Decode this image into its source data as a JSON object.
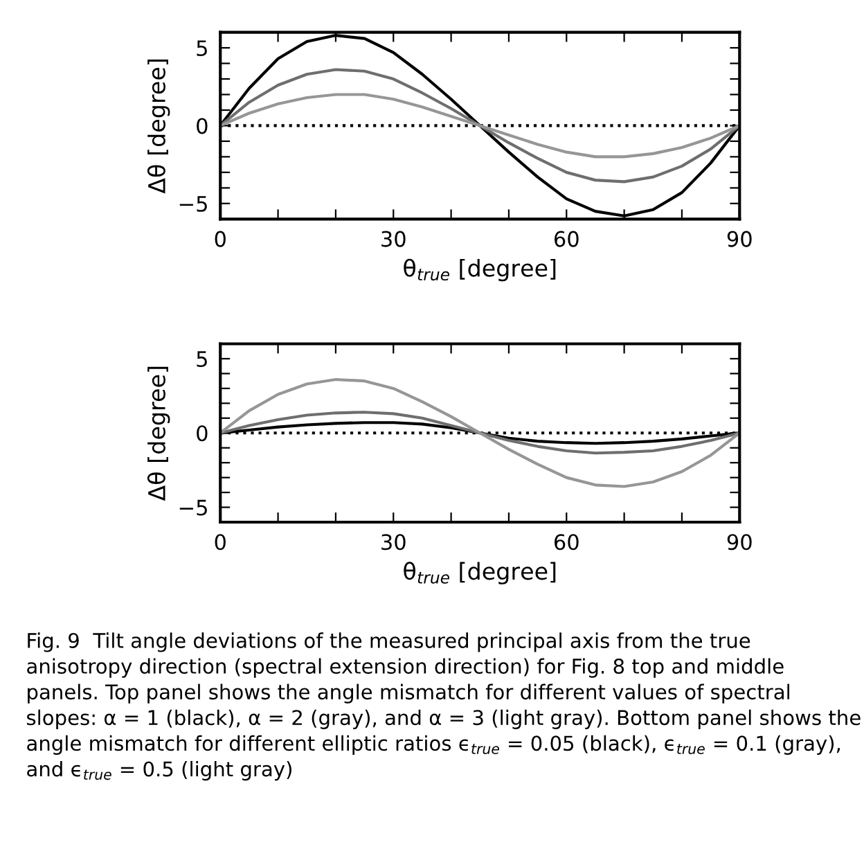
{
  "chart_data": [
    {
      "type": "line",
      "xlabel": "θ$_{true}$ [degree]",
      "ylabel": "Δθ [degree]",
      "x": [
        0,
        5,
        10,
        15,
        20,
        25,
        30,
        35,
        40,
        45,
        50,
        55,
        60,
        65,
        70,
        75,
        80,
        85,
        90
      ],
      "xlim": [
        0,
        90
      ],
      "ylim": [
        -6,
        6
      ],
      "xticks": [
        0,
        {
          "value": 10,
          "label": null
        },
        {
          "value": 20,
          "label": null
        },
        30,
        {
          "value": 40,
          "label": null
        },
        {
          "value": 50,
          "label": null
        },
        60,
        {
          "value": 70,
          "label": null
        },
        {
          "value": 80,
          "label": null
        },
        90
      ],
      "yticks": [
        {
          "value": -6,
          "label": null
        },
        -5,
        {
          "value": -4,
          "label": null
        },
        {
          "value": -3,
          "label": null
        },
        {
          "value": -2,
          "label": null
        },
        {
          "value": -1,
          "label": null
        },
        0,
        {
          "value": 1,
          "label": null
        },
        {
          "value": 2,
          "label": null
        },
        {
          "value": 3,
          "label": null
        },
        {
          "value": 4,
          "label": null
        },
        5,
        {
          "value": 6,
          "label": null
        }
      ],
      "grid": false,
      "legend": false,
      "ref_lines": [
        {
          "axis": "y",
          "value": 0,
          "color": "#000000",
          "line_style": "dotted"
        }
      ],
      "series": [
        {
          "color": "#000000",
          "values": [
            0,
            2.4,
            4.3,
            5.4,
            5.8,
            5.6,
            4.7,
            3.3,
            1.7,
            0,
            -1.7,
            -3.3,
            -4.7,
            -5.5,
            -5.8,
            -5.4,
            -4.3,
            -2.4,
            0
          ]
        },
        {
          "color": "#6e6e6e",
          "values": [
            0,
            1.5,
            2.6,
            3.3,
            3.6,
            3.5,
            3.0,
            2.1,
            1.1,
            0,
            -1.1,
            -2.1,
            -3.0,
            -3.5,
            -3.6,
            -3.3,
            -2.6,
            -1.5,
            0
          ]
        },
        {
          "color": "#969696",
          "values": [
            0,
            0.8,
            1.4,
            1.8,
            2.0,
            2.0,
            1.7,
            1.2,
            0.6,
            0,
            -0.6,
            -1.2,
            -1.7,
            -2.0,
            -2.0,
            -1.8,
            -1.4,
            -0.8,
            0
          ]
        }
      ]
    },
    {
      "type": "line",
      "xlabel": "θ$_{true}$ [degree]",
      "ylabel": "Δθ [degree]",
      "x": [
        0,
        5,
        10,
        15,
        20,
        25,
        30,
        35,
        40,
        45,
        50,
        55,
        60,
        65,
        70,
        75,
        80,
        85,
        90
      ],
      "xlim": [
        0,
        90
      ],
      "ylim": [
        -6,
        6
      ],
      "xticks": [
        0,
        {
          "value": 10,
          "label": null
        },
        {
          "value": 20,
          "label": null
        },
        30,
        {
          "value": 40,
          "label": null
        },
        {
          "value": 50,
          "label": null
        },
        60,
        {
          "value": 70,
          "label": null
        },
        {
          "value": 80,
          "label": null
        },
        90
      ],
      "yticks": [
        {
          "value": -6,
          "label": null
        },
        -5,
        {
          "value": -4,
          "label": null
        },
        {
          "value": -3,
          "label": null
        },
        {
          "value": -2,
          "label": null
        },
        {
          "value": -1,
          "label": null
        },
        0,
        {
          "value": 1,
          "label": null
        },
        {
          "value": 2,
          "label": null
        },
        {
          "value": 3,
          "label": null
        },
        {
          "value": 4,
          "label": null
        },
        5,
        {
          "value": 6,
          "label": null
        }
      ],
      "grid": false,
      "legend": false,
      "ref_lines": [
        {
          "axis": "y",
          "value": 0,
          "color": "#000000",
          "line_style": "dotted"
        }
      ],
      "series": [
        {
          "color": "#000000",
          "values": [
            0,
            0.2,
            0.4,
            0.55,
            0.65,
            0.7,
            0.7,
            0.6,
            0.35,
            0,
            -0.35,
            -0.55,
            -0.65,
            -0.7,
            -0.65,
            -0.55,
            -0.4,
            -0.2,
            0
          ]
        },
        {
          "color": "#6e6e6e",
          "values": [
            0,
            0.5,
            0.9,
            1.2,
            1.35,
            1.4,
            1.3,
            1.0,
            0.5,
            0,
            -0.5,
            -0.9,
            -1.2,
            -1.35,
            -1.3,
            -1.2,
            -0.9,
            -0.5,
            0
          ]
        },
        {
          "color": "#969696",
          "values": [
            0,
            1.5,
            2.6,
            3.3,
            3.6,
            3.5,
            3.0,
            2.1,
            1.1,
            0,
            -1.1,
            -2.1,
            -3.0,
            -3.5,
            -3.6,
            -3.3,
            -2.6,
            -1.5,
            0
          ]
        }
      ],
      "annotations": [
        "Fig. 9  Tilt angle deviations of the measured principal axis from the true anisotropy direction (spectral extension direction) for Fig. 8 top and middle panels. Top panel shows the angle mismatch for different values of spectral slopes: α = 1 (black), α = 2 (gray), and α = 3 (light gray). Bottom panel shows the angle mismatch for different elliptic ratios ϵ$_{true}$ = 0.05 (black), ϵ$_{true}$ = 0.1 (gray), and ϵ$_{true}$ = 0.5 (light gray)"
      ]
    }
  ]
}
